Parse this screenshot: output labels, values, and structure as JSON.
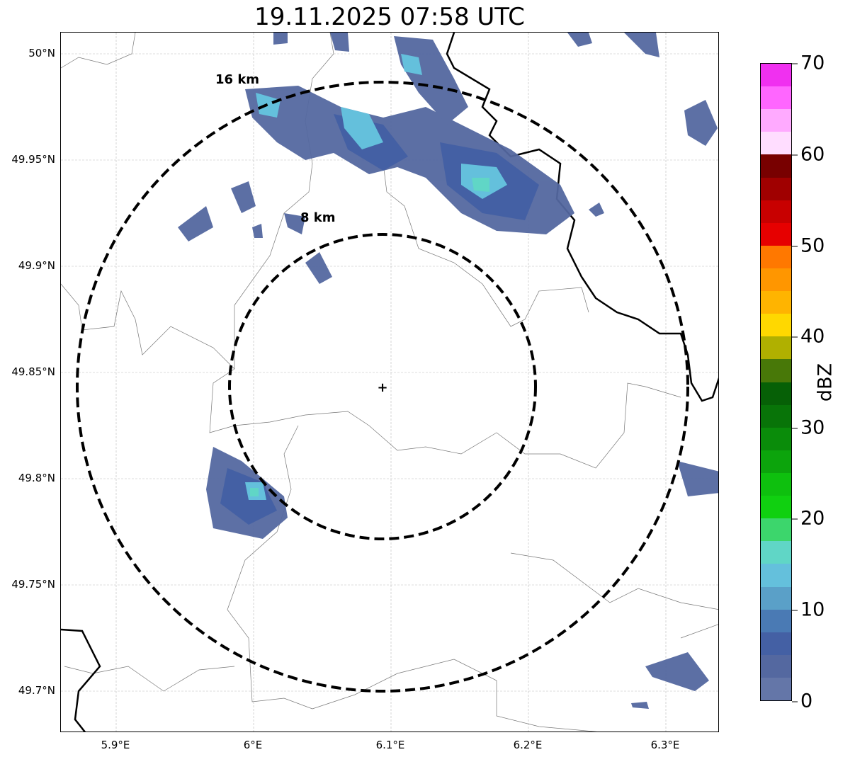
{
  "title": "19.11.2025 07:58 UTC",
  "map": {
    "lat_labels": [
      "50°N",
      "49.95°N",
      "49.9°N",
      "49.85°N",
      "49.8°N",
      "49.75°N",
      "49.7°N"
    ],
    "lon_labels": [
      "5.9°E",
      "6°E",
      "6.1°E",
      "6.2°E",
      "6.3°E"
    ],
    "range_rings": [
      {
        "label": "16 km"
      },
      {
        "label": "8 km"
      }
    ],
    "radar_site_marker": "+"
  },
  "colorbar": {
    "unit": "dBZ",
    "ticks": [
      "70",
      "60",
      "50",
      "40",
      "30",
      "20",
      "10",
      "0"
    ],
    "colors_top_to_bottom": [
      "#f030f0",
      "#ff66ff",
      "#ffaaff",
      "#ffddff",
      "#780000",
      "#a00000",
      "#c80000",
      "#e60000",
      "#ff7800",
      "#ff9600",
      "#ffb400",
      "#ffd800",
      "#b0b000",
      "#487808",
      "#066006",
      "#087408",
      "#0a8c0a",
      "#0ca40c",
      "#0ec00e",
      "#10d010",
      "#3cd66c",
      "#60d6c6",
      "#64c0dc",
      "#5aa0c8",
      "#4a7ab4",
      "#4460a4",
      "#5468a0",
      "#6476a8"
    ]
  }
}
